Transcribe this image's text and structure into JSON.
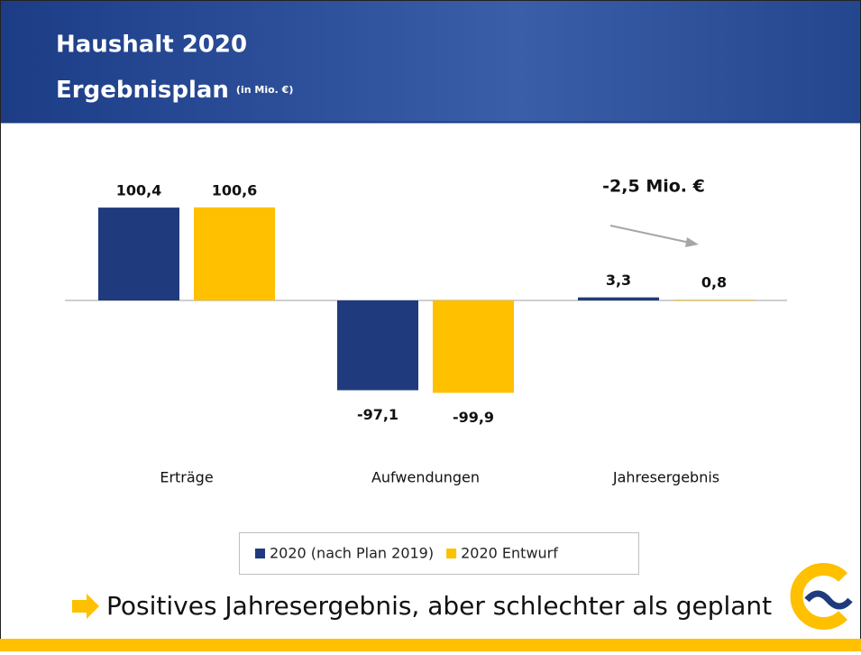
{
  "header": {
    "title": "Haushalt 2020",
    "subtitle": "Ergebnisplan",
    "unit": "(in Mio. €)"
  },
  "chart_data": {
    "type": "bar",
    "categories": [
      "Erträge",
      "Aufwendungen",
      "Jahresergebnis"
    ],
    "series": [
      {
        "name": "2020 (nach Plan 2019)",
        "color": "#1f3b7d",
        "values": [
          100.4,
          -97.1,
          3.3
        ],
        "value_labels": [
          "100,4",
          "-97,1",
          "3,3"
        ]
      },
      {
        "name": "2020 Entwurf",
        "color": "#ffc000",
        "values": [
          100.6,
          -99.9,
          0.8
        ],
        "value_labels": [
          "100,6",
          "-99,9",
          "0,8"
        ]
      }
    ],
    "annotation": "-2,5 Mio. €"
  },
  "footer": {
    "text": "Positives Jahresergebnis, aber schlechter als geplant"
  }
}
